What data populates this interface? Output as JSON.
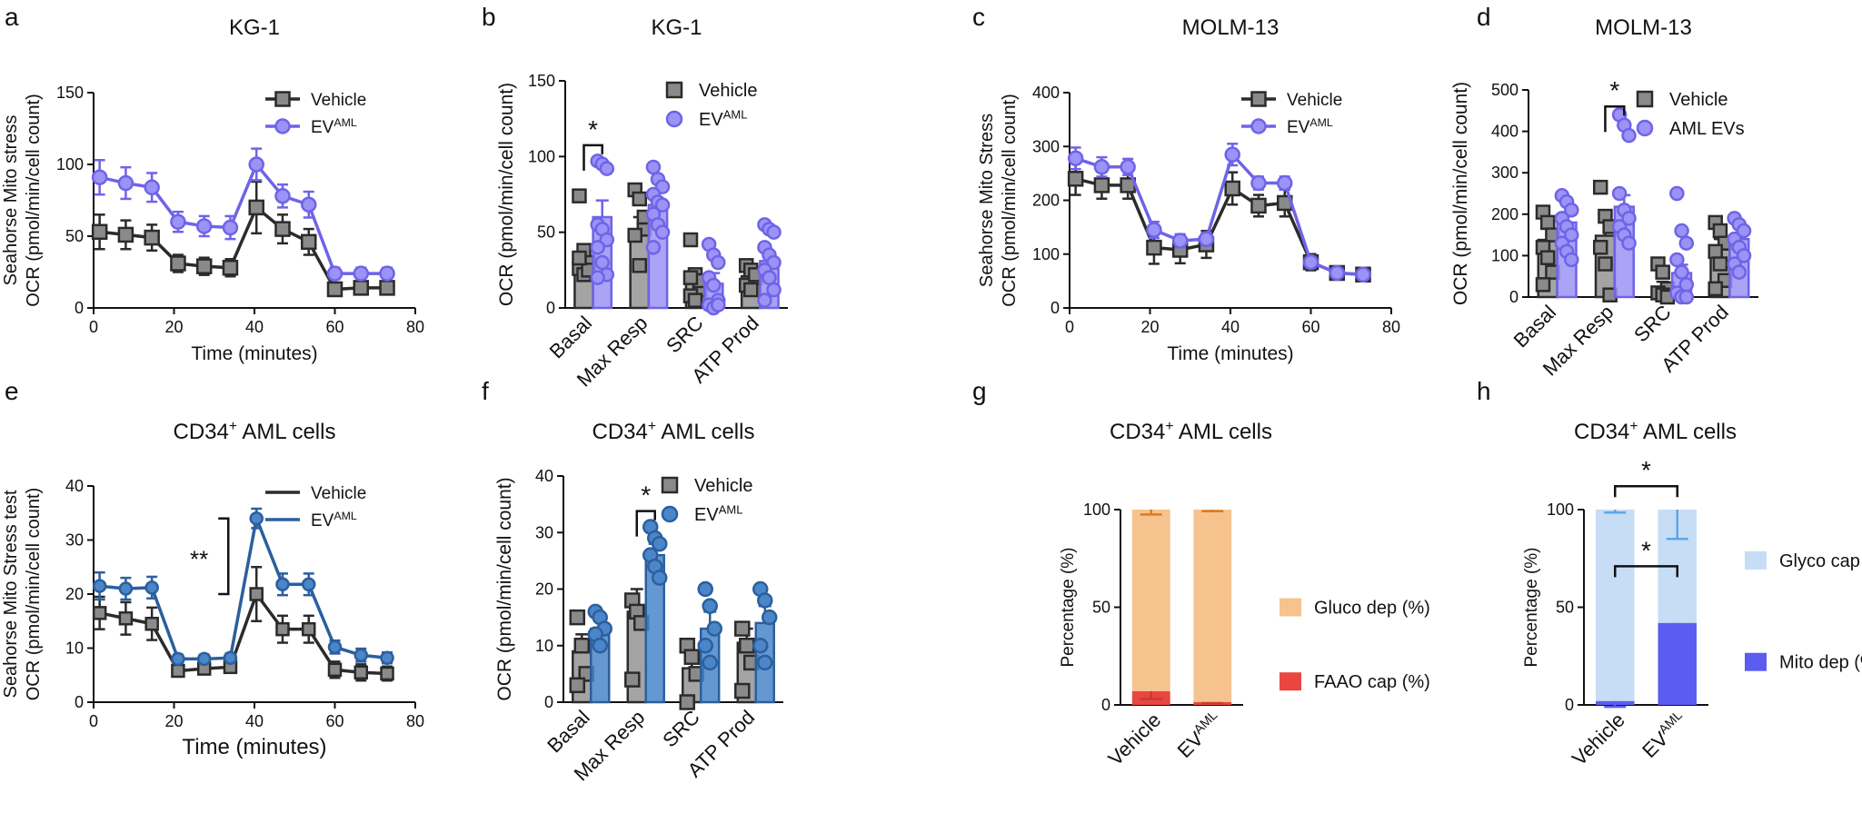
{
  "colors": {
    "vehicle": "#888888",
    "vehicle_line": "#2b2b2b",
    "ev_purple": "#6f63e8",
    "ev_purple_fill": "#9b93f5",
    "ev_blue": "#2b5f9e",
    "ev_blue_fill": "#4a86c8",
    "gluco": "#f6c38f",
    "faao": "#e8463f",
    "glyco": "#c6ddf5",
    "mito": "#5b5cf0"
  },
  "chart_data": [
    {
      "id": "a",
      "panel_label": "a",
      "type": "line",
      "title": "KG-1",
      "xlabel": "Time (minutes)",
      "ylabel_lines": [
        "Seahorse Mito stress",
        "OCR (pmol/min/cell count)"
      ],
      "xlim": [
        0,
        80
      ],
      "ylim": [
        0,
        150
      ],
      "xticks": [
        0,
        20,
        40,
        60,
        80
      ],
      "yticks": [
        0,
        50,
        100,
        150
      ],
      "x": [
        1.5,
        8,
        14.5,
        21,
        27.5,
        34,
        40.5,
        47,
        53.5,
        60,
        66.5,
        73
      ],
      "series": [
        {
          "name": "Vehicle",
          "sup": "",
          "style": "vehicle",
          "marker": "square",
          "values": [
            53,
            51,
            49,
            31,
            29,
            28,
            70,
            55,
            46,
            13,
            14,
            14
          ],
          "errors": [
            12,
            10,
            9,
            6,
            6,
            6,
            18,
            10,
            9,
            4,
            4,
            3
          ]
        },
        {
          "name": "EV",
          "sup": "AML",
          "style": "purple",
          "marker": "circle",
          "values": [
            91,
            87,
            84,
            60,
            57,
            56,
            100,
            78,
            72,
            24,
            24,
            24
          ],
          "errors": [
            12,
            11,
            10,
            7,
            7,
            8,
            11,
            8,
            9,
            4,
            4,
            4
          ]
        }
      ],
      "legend": "top-right"
    },
    {
      "id": "b",
      "panel_label": "b",
      "type": "bar",
      "title": "KG-1",
      "ylabel_lines": [
        "OCR (pmol/min/cell count)"
      ],
      "categories": [
        "Basal",
        "Max Resp",
        "SRC",
        "ATP Prod"
      ],
      "ylim": [
        0,
        150
      ],
      "yticks": [
        0,
        50,
        100,
        150
      ],
      "series": [
        {
          "name": "Vehicle",
          "sup": "",
          "style": "vehicle",
          "marker": "square",
          "values": [
            32,
            50,
            17,
            21
          ],
          "errors": [
            8,
            10,
            6,
            5
          ],
          "points": [
            [
              74,
              38,
              30,
              26,
              22,
              25,
              33
            ],
            [
              78,
              72,
              52,
              48,
              28,
              60
            ],
            [
              45,
              22,
              12,
              8,
              5,
              18,
              20
            ],
            [
              28,
              25,
              20,
              15,
              12,
              22
            ]
          ]
        },
        {
          "name": "EV",
          "sup": "AML",
          "style": "purple",
          "marker": "circle",
          "values": [
            60,
            68,
            16,
            31
          ],
          "errors": [
            11,
            10,
            7,
            6
          ],
          "points": [
            [
              97,
              95,
              92,
              55,
              52,
              45,
              40,
              30,
              22,
              20
            ],
            [
              93,
              85,
              80,
              75,
              70,
              68,
              62,
              55,
              50,
              40
            ],
            [
              42,
              35,
              30,
              20,
              15,
              5,
              2,
              0,
              2
            ],
            [
              55,
              52,
              50,
              40,
              35,
              30,
              25,
              20,
              12,
              5
            ]
          ]
        }
      ],
      "significance": [
        {
          "category": "Basal",
          "label": "*"
        }
      ],
      "legend": "top-right"
    },
    {
      "id": "c",
      "panel_label": "c",
      "type": "line",
      "title": "MOLM-13",
      "xlabel": "Time (minutes)",
      "ylabel_lines": [
        "Seahorse Mito Stress",
        "OCR (pmol/min/cell count)"
      ],
      "xlim": [
        0,
        80
      ],
      "ylim": [
        0,
        400
      ],
      "xticks": [
        0,
        20,
        40,
        60,
        80
      ],
      "yticks": [
        0,
        100,
        200,
        300,
        400
      ],
      "x": [
        1.5,
        8,
        14.5,
        21,
        27.5,
        34,
        40.5,
        47,
        53.5,
        60,
        66.5,
        73
      ],
      "series": [
        {
          "name": "Vehicle",
          "sup": "",
          "style": "vehicle",
          "marker": "square",
          "values": [
            240,
            228,
            228,
            112,
            108,
            118,
            222,
            190,
            195,
            85,
            65,
            62
          ],
          "errors": [
            30,
            25,
            25,
            30,
            25,
            25,
            30,
            20,
            25,
            15,
            10,
            8
          ]
        },
        {
          "name": "EV",
          "sup": "AML",
          "style": "purple",
          "marker": "circle",
          "values": [
            278,
            262,
            262,
            145,
            125,
            128,
            285,
            232,
            232,
            85,
            65,
            62
          ],
          "errors": [
            20,
            18,
            15,
            15,
            12,
            12,
            20,
            12,
            12,
            10,
            8,
            6
          ]
        }
      ],
      "legend": "top-right"
    },
    {
      "id": "d",
      "panel_label": "d",
      "type": "bar",
      "title": "MOLM-13",
      "ylabel_lines": [
        "OCR (pmol/min/cell count)"
      ],
      "categories": [
        "Basal",
        "Max Resp",
        "SRC",
        "ATP Prod"
      ],
      "ylim": [
        0,
        500
      ],
      "yticks": [
        0,
        100,
        200,
        300,
        400,
        500
      ],
      "series": [
        {
          "name": "Vehicle",
          "sup": "",
          "style": "vehicle",
          "marker": "square",
          "values": [
            138,
            148,
            22,
            120
          ],
          "errors": [
            30,
            35,
            15,
            20
          ],
          "points": [
            [
              205,
              180,
              150,
              120,
              95,
              60,
              30
            ],
            [
              265,
              195,
              170,
              120,
              80,
              5
            ],
            [
              80,
              60,
              20,
              10,
              5,
              0
            ],
            [
              180,
              160,
              130,
              110,
              80,
              40,
              20
            ]
          ]
        },
        {
          "name": "EV",
          "sup": "AML",
          "style": "purple",
          "marker": "circle",
          "values": [
            180,
            218,
            58,
            140
          ],
          "errors": [
            15,
            28,
            20,
            15
          ],
          "points": [
            [
              245,
              230,
              210,
              190,
              170,
              150,
              130,
              110,
              90
            ],
            [
              440,
              415,
              390,
              250,
              210,
              190,
              170,
              150,
              130
            ],
            [
              250,
              160,
              130,
              90,
              60,
              30,
              10,
              0,
              0
            ],
            [
              190,
              175,
              160,
              140,
              120,
              100,
              80,
              60
            ]
          ]
        }
      ],
      "legend_names": [
        "Vehicle",
        "AML EVs"
      ],
      "significance": [
        {
          "category": "Max Resp",
          "label": "*"
        }
      ],
      "legend": "top-right"
    },
    {
      "id": "e",
      "panel_label": "e",
      "type": "line",
      "title": "CD34",
      "title_sup": "+",
      "title_rest": " AML cells",
      "xlabel": "Time (minutes)",
      "ylabel_lines": [
        "Seahorse Mito Stress test",
        "OCR (pmol/min/cell count)"
      ],
      "xlim": [
        0,
        80
      ],
      "ylim": [
        0,
        40
      ],
      "xticks": [
        0,
        20,
        40,
        60,
        80
      ],
      "yticks": [
        0,
        10,
        20,
        30,
        40
      ],
      "x": [
        1.5,
        8,
        14.5,
        21,
        27.5,
        34,
        40.5,
        47,
        53.5,
        60,
        66.5,
        73
      ],
      "series": [
        {
          "name": "Vehicle",
          "sup": "",
          "style": "blackline",
          "marker": "square",
          "values": [
            16.5,
            15.5,
            14.5,
            5.8,
            6.2,
            6.5,
            20,
            13.5,
            13.5,
            6,
            5.5,
            5.3
          ],
          "errors": [
            3,
            3,
            3,
            1,
            1,
            1,
            5,
            2.5,
            2.5,
            1.5,
            1.5,
            1.3
          ]
        },
        {
          "name": "EV",
          "sup": "AML",
          "style": "blue",
          "marker": "circle",
          "values": [
            21.5,
            21,
            21.2,
            8,
            8,
            8.2,
            34,
            21.8,
            21.8,
            10.2,
            8.7,
            8.2
          ],
          "errors": [
            2.5,
            2,
            2,
            0.8,
            0.8,
            0.8,
            1.8,
            2,
            2,
            1.2,
            1.2,
            1
          ]
        }
      ],
      "significance": [
        {
          "label": "**"
        }
      ],
      "legend": "top-right"
    },
    {
      "id": "f",
      "panel_label": "f",
      "type": "bar",
      "title": "CD34",
      "title_sup": "+",
      "title_rest": " AML cells",
      "ylabel_lines": [
        "OCR (pmol/min/cell count)"
      ],
      "categories": [
        "Basal",
        "Max Resp",
        "SRC",
        "ATP Prod"
      ],
      "ylim": [
        0,
        40
      ],
      "yticks": [
        0,
        10,
        20,
        30,
        40
      ],
      "series": [
        {
          "name": "Vehicle",
          "sup": "",
          "style": "vehicle",
          "marker": "square",
          "values": [
            9,
            16,
            6,
            10.5
          ],
          "errors": [
            3,
            4,
            2,
            2.5
          ],
          "points": [
            [
              15,
              10,
              5,
              3
            ],
            [
              18,
              16,
              14,
              4
            ],
            [
              10,
              8,
              5,
              0
            ],
            [
              13,
              10,
              7,
              2
            ]
          ]
        },
        {
          "name": "EV",
          "sup": "AML",
          "style": "blue",
          "marker": "circle",
          "values": [
            13,
            26,
            13,
            14
          ],
          "errors": [
            1.5,
            2,
            3,
            3
          ],
          "points": [
            [
              16,
              15,
              13,
              12,
              10
            ],
            [
              31,
              29,
              28,
              26,
              24,
              22
            ],
            [
              20,
              17,
              13,
              10,
              7
            ],
            [
              20,
              18,
              15,
              10,
              7
            ]
          ]
        }
      ],
      "significance": [
        {
          "category": "Max Resp",
          "label": "*"
        }
      ],
      "legend": "top-right"
    },
    {
      "id": "g",
      "panel_label": "g",
      "type": "stacked-bar",
      "title": "CD34",
      "title_sup": "+",
      "title_rest": " AML cells",
      "ylabel_lines": [
        "Percentage (%)"
      ],
      "categories": [
        {
          "name": "Vehicle",
          "sup": ""
        },
        {
          "name": "EV",
          "sup": "AML"
        }
      ],
      "ylim": [
        0,
        100
      ],
      "yticks": [
        0,
        50,
        100
      ],
      "series": [
        {
          "name": "FAAO cap (%)",
          "color_key": "faao",
          "values": [
            7,
            1.5
          ],
          "errors": [
            4,
            0.5
          ]
        },
        {
          "name": "Gluco dep (%)",
          "color_key": "gluco",
          "values": [
            93,
            98.5
          ],
          "errors": [
            2.5,
            0.8
          ]
        }
      ],
      "legend": "right"
    },
    {
      "id": "h",
      "panel_label": "h",
      "type": "stacked-bar",
      "title": "CD34",
      "title_sup": "+",
      "title_rest": " AML cells",
      "ylabel_lines": [
        "Percentage (%)"
      ],
      "categories": [
        {
          "name": "Vehicle",
          "sup": ""
        },
        {
          "name": "EV",
          "sup": "AML"
        }
      ],
      "ylim": [
        0,
        100
      ],
      "yticks": [
        0,
        50,
        100
      ],
      "series": [
        {
          "name": "Mito dep (%)",
          "color_key": "mito",
          "values": [
            2,
            42
          ],
          "errors": [
            3,
            14
          ]
        },
        {
          "name": "Glyco cap (%)",
          "color_key": "glyco",
          "values": [
            98,
            58
          ],
          "errors": [
            1.5,
            15
          ]
        }
      ],
      "significance": [
        {
          "label": "*"
        },
        {
          "label": "*"
        }
      ],
      "legend": "right"
    }
  ]
}
